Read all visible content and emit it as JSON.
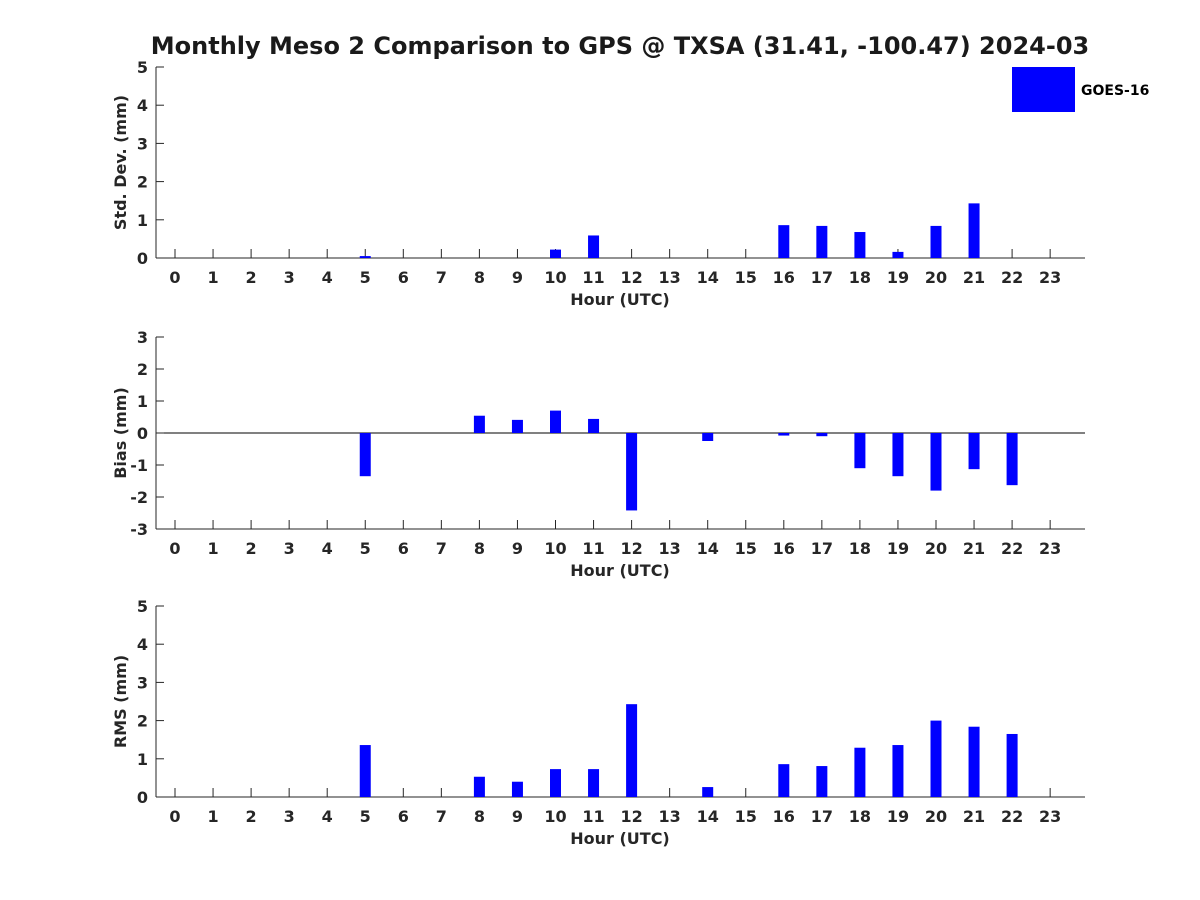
{
  "title": "Monthly Meso 2 Comparison to GPS @ TXSA (31.41, -100.47) 2024-03",
  "legend": {
    "label": "GOES-16",
    "color": "#0000ff"
  },
  "chart_data": [
    {
      "type": "bar",
      "xlabel": "Hour (UTC)",
      "ylabel": "Std. Dev. (mm)",
      "ylim": [
        0,
        5
      ],
      "yticks": [
        "0",
        "1",
        "2",
        "3",
        "4",
        "5"
      ],
      "categories": [
        "0",
        "1",
        "2",
        "3",
        "4",
        "5",
        "6",
        "7",
        "8",
        "9",
        "10",
        "11",
        "12",
        "13",
        "14",
        "15",
        "16",
        "17",
        "18",
        "19",
        "20",
        "21",
        "22",
        "23"
      ],
      "series": [
        {
          "name": "GOES-16",
          "color": "#0000ff",
          "values": [
            null,
            null,
            null,
            null,
            null,
            0.05,
            null,
            null,
            null,
            null,
            0.22,
            0.59,
            null,
            null,
            null,
            null,
            0.86,
            0.84,
            0.68,
            0.16,
            0.84,
            1.43,
            null,
            null
          ]
        }
      ],
      "legend_position": "top-right"
    },
    {
      "type": "bar",
      "xlabel": "Hour (UTC)",
      "ylabel": "Bias (mm)",
      "ylim": [
        -3,
        3
      ],
      "yticks": [
        "-3",
        "-2",
        "-1",
        "0",
        "1",
        "2",
        "3"
      ],
      "zero_line": true,
      "categories": [
        "0",
        "1",
        "2",
        "3",
        "4",
        "5",
        "6",
        "7",
        "8",
        "9",
        "10",
        "11",
        "12",
        "13",
        "14",
        "15",
        "16",
        "17",
        "18",
        "19",
        "20",
        "21",
        "22",
        "23"
      ],
      "series": [
        {
          "name": "GOES-16",
          "color": "#0000ff",
          "values": [
            null,
            null,
            null,
            null,
            null,
            -1.35,
            null,
            null,
            0.54,
            0.41,
            0.7,
            0.44,
            -2.42,
            null,
            -0.25,
            null,
            -0.08,
            -0.1,
            -1.1,
            -1.35,
            -1.8,
            -1.13,
            -1.63,
            null
          ]
        }
      ]
    },
    {
      "type": "bar",
      "xlabel": "Hour (UTC)",
      "ylabel": "RMS (mm)",
      "ylim": [
        0,
        5
      ],
      "yticks": [
        "0",
        "1",
        "2",
        "3",
        "4",
        "5"
      ],
      "categories": [
        "0",
        "1",
        "2",
        "3",
        "4",
        "5",
        "6",
        "7",
        "8",
        "9",
        "10",
        "11",
        "12",
        "13",
        "14",
        "15",
        "16",
        "17",
        "18",
        "19",
        "20",
        "21",
        "22",
        "23"
      ],
      "series": [
        {
          "name": "GOES-16",
          "color": "#0000ff",
          "values": [
            null,
            null,
            null,
            null,
            null,
            1.36,
            null,
            null,
            0.53,
            0.4,
            0.73,
            0.73,
            2.43,
            null,
            0.26,
            null,
            0.86,
            0.81,
            1.29,
            1.36,
            2.0,
            1.84,
            1.65,
            null
          ]
        }
      ]
    }
  ]
}
